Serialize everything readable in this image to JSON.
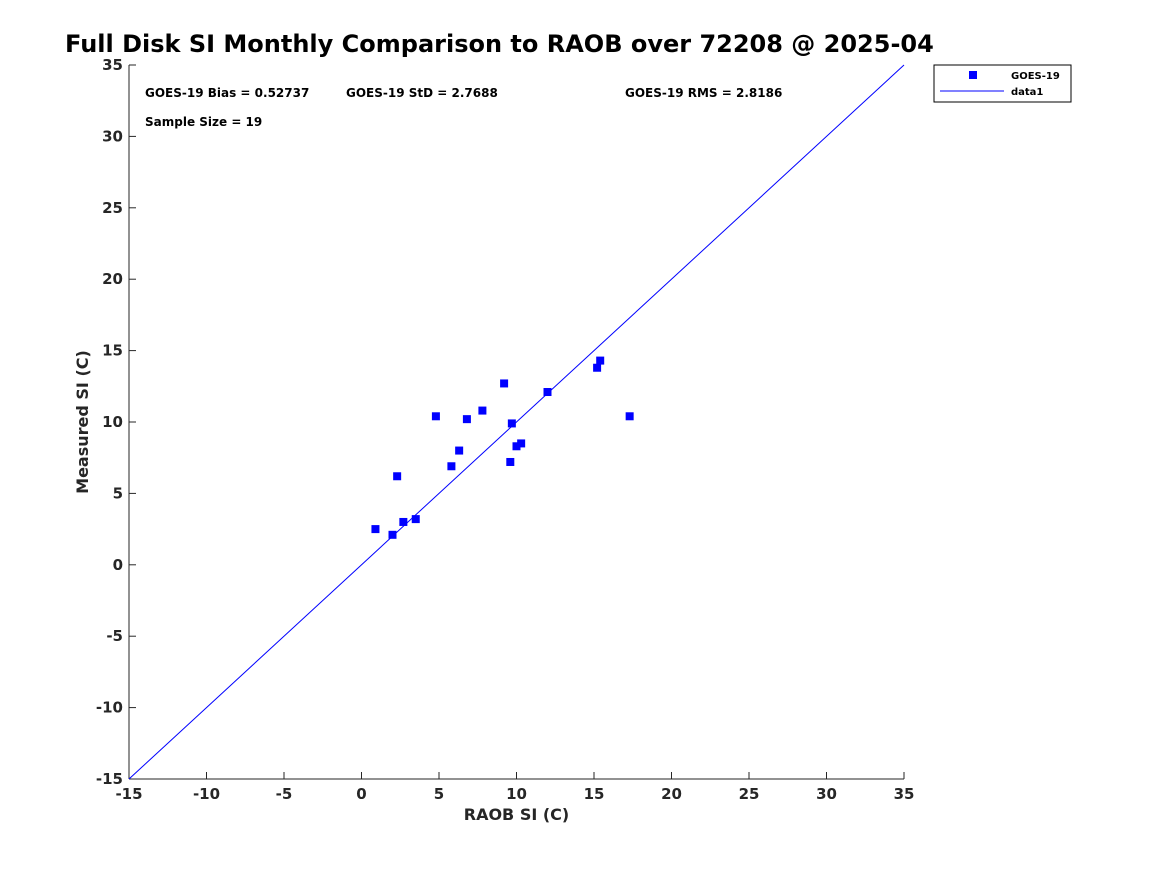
{
  "chart_data": {
    "type": "scatter",
    "title": "Full Disk SI Monthly Comparison to RAOB over 72208 @ 2025-04",
    "xlabel": "RAOB SI (C)",
    "ylabel": "Measured SI (C)",
    "xlim": [
      -15,
      35
    ],
    "ylim": [
      -15,
      35
    ],
    "xticks": [
      "-15",
      "-10",
      "-5",
      "0",
      "5",
      "10",
      "15",
      "20",
      "25",
      "30",
      "35"
    ],
    "yticks": [
      "-15",
      "-10",
      "-5",
      "0",
      "5",
      "10",
      "15",
      "20",
      "25",
      "30",
      "35"
    ],
    "grid": false,
    "legend_position": "outside top-right",
    "stats": {
      "bias": "GOES-19 Bias = 0.52737",
      "std": "GOES-19 StD = 2.7688",
      "rms": "GOES-19 RMS = 2.8186",
      "sample": "Sample Size = 19"
    },
    "series": [
      {
        "name": "GOES-19",
        "kind": "scatter",
        "marker": "square",
        "color": "#0000ff",
        "points": [
          [
            0.9,
            2.5
          ],
          [
            2.0,
            2.1
          ],
          [
            2.3,
            6.2
          ],
          [
            2.7,
            3.0
          ],
          [
            3.5,
            3.2
          ],
          [
            4.8,
            10.4
          ],
          [
            5.8,
            6.9
          ],
          [
            6.3,
            8.0
          ],
          [
            6.8,
            10.2
          ],
          [
            7.8,
            10.8
          ],
          [
            9.2,
            12.7
          ],
          [
            9.6,
            7.2
          ],
          [
            9.7,
            9.9
          ],
          [
            10.0,
            8.3
          ],
          [
            10.3,
            8.5
          ],
          [
            12.0,
            12.1
          ],
          [
            15.2,
            13.8
          ],
          [
            15.4,
            14.3
          ],
          [
            17.3,
            10.4
          ]
        ]
      },
      {
        "name": "data1",
        "kind": "line",
        "color": "#0000ff",
        "points": [
          [
            -15,
            -15
          ],
          [
            35,
            35
          ]
        ]
      }
    ]
  }
}
